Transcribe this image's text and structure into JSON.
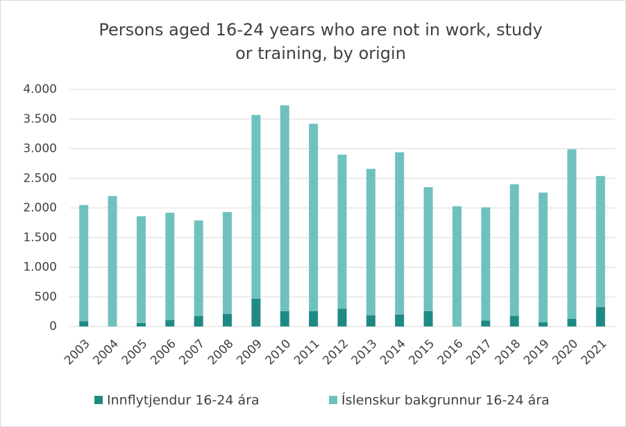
{
  "chart_data": {
    "type": "stacked_bar",
    "title": [
      "Persons aged 16-24 years who are not in work, study",
      "or training, by origin"
    ],
    "categories": [
      "2003",
      "2004",
      "2005",
      "2006",
      "2007",
      "2008",
      "2009",
      "2010",
      "2011",
      "2012",
      "2013",
      "2014",
      "2015",
      "2016",
      "2017",
      "2018",
      "2019",
      "2020",
      "2021"
    ],
    "series": [
      {
        "name": "Innflytjendur 16-24 ára",
        "color": "#1f8a84",
        "values": [
          90,
          0,
          60,
          110,
          175,
          210,
          470,
          260,
          260,
          300,
          190,
          200,
          260,
          0,
          100,
          180,
          70,
          130,
          330
        ]
      },
      {
        "name": "Íslenskur bakgrunnur 16-24 ára",
        "color": "#6fc1be",
        "values": [
          1960,
          2200,
          1800,
          1810,
          1615,
          1720,
          3100,
          3470,
          3160,
          2600,
          2470,
          2740,
          2090,
          2030,
          1910,
          2220,
          2190,
          2860,
          2210
        ]
      }
    ],
    "ylim": [
      0,
      4000
    ],
    "yticks": [
      0,
      500,
      {
        "value": 1000,
        "label": "1.000"
      },
      {
        "value": 1500,
        "label": "1.500"
      },
      {
        "value": 2000,
        "label": "2.000"
      },
      {
        "value": 2500,
        "label": "2.500"
      },
      {
        "value": 3000,
        "label": "3.000"
      },
      {
        "value": 3500,
        "label": "3.500"
      },
      {
        "value": 4000,
        "label": "4.000"
      }
    ],
    "grid": true,
    "legend": "bottom"
  }
}
